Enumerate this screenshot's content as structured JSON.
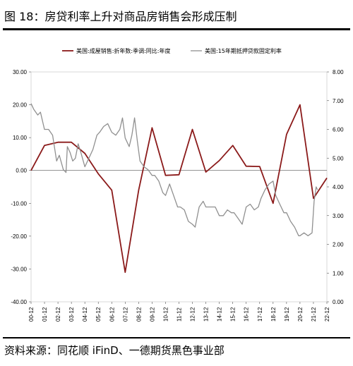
{
  "figure": {
    "title": "图 18：房贷利率上升对商品房销售会形成压制",
    "source": "资料来源：同花顺 iFinD、一德期货黑色事业部"
  },
  "chart_data": {
    "type": "line",
    "x_ticks": [
      "00-12",
      "01-12",
      "02-12",
      "03-12",
      "04-12",
      "05-12",
      "06-12",
      "07-12",
      "08-12",
      "09-12",
      "10-12",
      "11-12",
      "12-12",
      "13-12",
      "14-12",
      "15-12",
      "16-12",
      "17-12",
      "18-12",
      "19-12",
      "20-12",
      "21-12",
      "22-12"
    ],
    "y_left": {
      "min": -40,
      "max": 30,
      "ticks": [
        "30.00",
        "20.00",
        "10.00",
        "0.00",
        "-10.00",
        "-20.00",
        "-30.00",
        "-40.00"
      ]
    },
    "y_right": {
      "min": 0,
      "max": 8,
      "ticks": [
        "8.00",
        "7.00",
        "6.00",
        "5.00",
        "4.00",
        "3.00",
        "2.00",
        "1.00",
        "0.00"
      ]
    },
    "legend_position": "top",
    "series": [
      {
        "name": "美国:成屋销售:折年数:季调:同比:年度",
        "axis": "left",
        "color": "#8b1a1a",
        "points": [
          [
            2000.9,
            0.0
          ],
          [
            2001.9,
            7.6
          ],
          [
            2002.9,
            8.6
          ],
          [
            2003.9,
            8.6
          ],
          [
            2004.9,
            5.2
          ],
          [
            2005.9,
            -1.0
          ],
          [
            2006.9,
            -6.0
          ],
          [
            2007.9,
            -31.0
          ],
          [
            2008.9,
            -6.0
          ],
          [
            2009.9,
            13.0
          ],
          [
            2010.9,
            -1.5
          ],
          [
            2011.9,
            -1.3
          ],
          [
            2012.9,
            12.5
          ],
          [
            2013.9,
            -0.5
          ],
          [
            2014.9,
            3.0
          ],
          [
            2015.9,
            7.6
          ],
          [
            2016.9,
            1.3
          ],
          [
            2017.9,
            1.2
          ],
          [
            2018.9,
            -10.0
          ],
          [
            2019.9,
            11.0
          ],
          [
            2020.9,
            20.0
          ],
          [
            2021.9,
            -8.5
          ],
          [
            2022.9,
            -2.3
          ]
        ]
      },
      {
        "name": "美国:15年期抵押贷款固定利率",
        "axis": "right",
        "color": "#909090",
        "points": [
          [
            2000.9,
            6.9
          ],
          [
            2001.1,
            6.7
          ],
          [
            2001.4,
            6.5
          ],
          [
            2001.6,
            6.6
          ],
          [
            2001.9,
            6.0
          ],
          [
            2002.2,
            6.0
          ],
          [
            2002.5,
            5.8
          ],
          [
            2002.8,
            4.9
          ],
          [
            2003.0,
            5.1
          ],
          [
            2003.3,
            4.6
          ],
          [
            2003.5,
            4.5
          ],
          [
            2003.6,
            5.4
          ],
          [
            2003.8,
            5.2
          ],
          [
            2004.0,
            4.9
          ],
          [
            2004.2,
            5.0
          ],
          [
            2004.4,
            5.5
          ],
          [
            2004.6,
            5.2
          ],
          [
            2004.9,
            4.7
          ],
          [
            2005.2,
            5.0
          ],
          [
            2005.5,
            5.3
          ],
          [
            2005.8,
            5.8
          ],
          [
            2006.0,
            5.9
          ],
          [
            2006.3,
            6.1
          ],
          [
            2006.6,
            6.2
          ],
          [
            2006.9,
            5.9
          ],
          [
            2007.2,
            5.8
          ],
          [
            2007.5,
            6.0
          ],
          [
            2007.7,
            6.4
          ],
          [
            2007.9,
            5.7
          ],
          [
            2008.2,
            5.4
          ],
          [
            2008.4,
            5.8
          ],
          [
            2008.6,
            6.4
          ],
          [
            2008.8,
            5.6
          ],
          [
            2009.0,
            4.9
          ],
          [
            2009.3,
            4.7
          ],
          [
            2009.6,
            4.6
          ],
          [
            2009.9,
            4.4
          ],
          [
            2010.1,
            4.4
          ],
          [
            2010.4,
            4.2
          ],
          [
            2010.7,
            3.8
          ],
          [
            2010.9,
            3.7
          ],
          [
            2011.2,
            4.1
          ],
          [
            2011.5,
            3.7
          ],
          [
            2011.8,
            3.3
          ],
          [
            2012.0,
            3.3
          ],
          [
            2012.3,
            3.2
          ],
          [
            2012.6,
            2.8
          ],
          [
            2012.9,
            2.7
          ],
          [
            2013.1,
            2.6
          ],
          [
            2013.4,
            3.3
          ],
          [
            2013.7,
            3.5
          ],
          [
            2013.9,
            3.3
          ],
          [
            2014.3,
            3.3
          ],
          [
            2014.6,
            3.3
          ],
          [
            2014.9,
            3.0
          ],
          [
            2015.2,
            3.0
          ],
          [
            2015.5,
            3.2
          ],
          [
            2015.8,
            3.1
          ],
          [
            2016.0,
            3.1
          ],
          [
            2016.3,
            2.9
          ],
          [
            2016.6,
            2.7
          ],
          [
            2016.9,
            3.3
          ],
          [
            2017.2,
            3.4
          ],
          [
            2017.5,
            3.2
          ],
          [
            2017.8,
            3.3
          ],
          [
            2018.0,
            3.6
          ],
          [
            2018.3,
            3.9
          ],
          [
            2018.6,
            4.1
          ],
          [
            2018.9,
            4.2
          ],
          [
            2019.1,
            3.7
          ],
          [
            2019.4,
            3.4
          ],
          [
            2019.7,
            3.1
          ],
          [
            2019.9,
            3.1
          ],
          [
            2020.2,
            2.8
          ],
          [
            2020.5,
            2.6
          ],
          [
            2020.8,
            2.3
          ],
          [
            2020.9,
            2.3
          ],
          [
            2021.2,
            2.4
          ],
          [
            2021.5,
            2.3
          ],
          [
            2021.8,
            2.4
          ],
          [
            2021.95,
            3.5
          ],
          [
            2022.1,
            4.0
          ],
          [
            2022.2,
            3.9
          ]
        ]
      }
    ]
  }
}
